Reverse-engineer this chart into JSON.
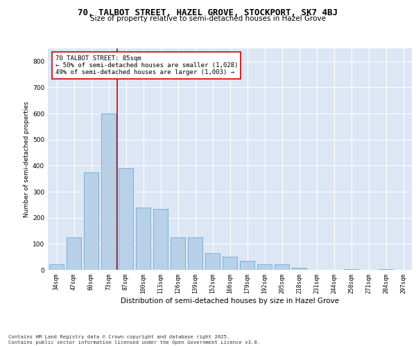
{
  "title1": "70, TALBOT STREET, HAZEL GROVE, STOCKPORT, SK7 4BJ",
  "title2": "Size of property relative to semi-detached houses in Hazel Grove",
  "xlabel": "Distribution of semi-detached houses by size in Hazel Grove",
  "ylabel": "Number of semi-detached properties",
  "categories": [
    "34sqm",
    "47sqm",
    "60sqm",
    "73sqm",
    "87sqm",
    "100sqm",
    "113sqm",
    "126sqm",
    "139sqm",
    "152sqm",
    "166sqm",
    "179sqm",
    "192sqm",
    "205sqm",
    "218sqm",
    "231sqm",
    "244sqm",
    "258sqm",
    "271sqm",
    "284sqm",
    "297sqm"
  ],
  "values": [
    20,
    125,
    375,
    600,
    390,
    240,
    235,
    125,
    125,
    65,
    50,
    35,
    20,
    20,
    7,
    0,
    0,
    2,
    0,
    2,
    0
  ],
  "bar_color": "#b8d0e8",
  "bar_edge_color": "#6aaad4",
  "property_line_color": "#cc0000",
  "annotation_text": "70 TALBOT STREET: 85sqm\n← 50% of semi-detached houses are smaller (1,028)\n49% of semi-detached houses are larger (1,003) →",
  "annotation_box_color": "#ffffff",
  "annotation_box_edge": "#cc0000",
  "ylim": [
    0,
    850
  ],
  "yticks": [
    0,
    100,
    200,
    300,
    400,
    500,
    600,
    700,
    800
  ],
  "footer": "Contains HM Land Registry data © Crown copyright and database right 2025.\nContains public sector information licensed under the Open Government Licence v3.0.",
  "bg_color": "#dce6f5",
  "fig_bg": "#ffffff",
  "grid_color": "#ffffff"
}
